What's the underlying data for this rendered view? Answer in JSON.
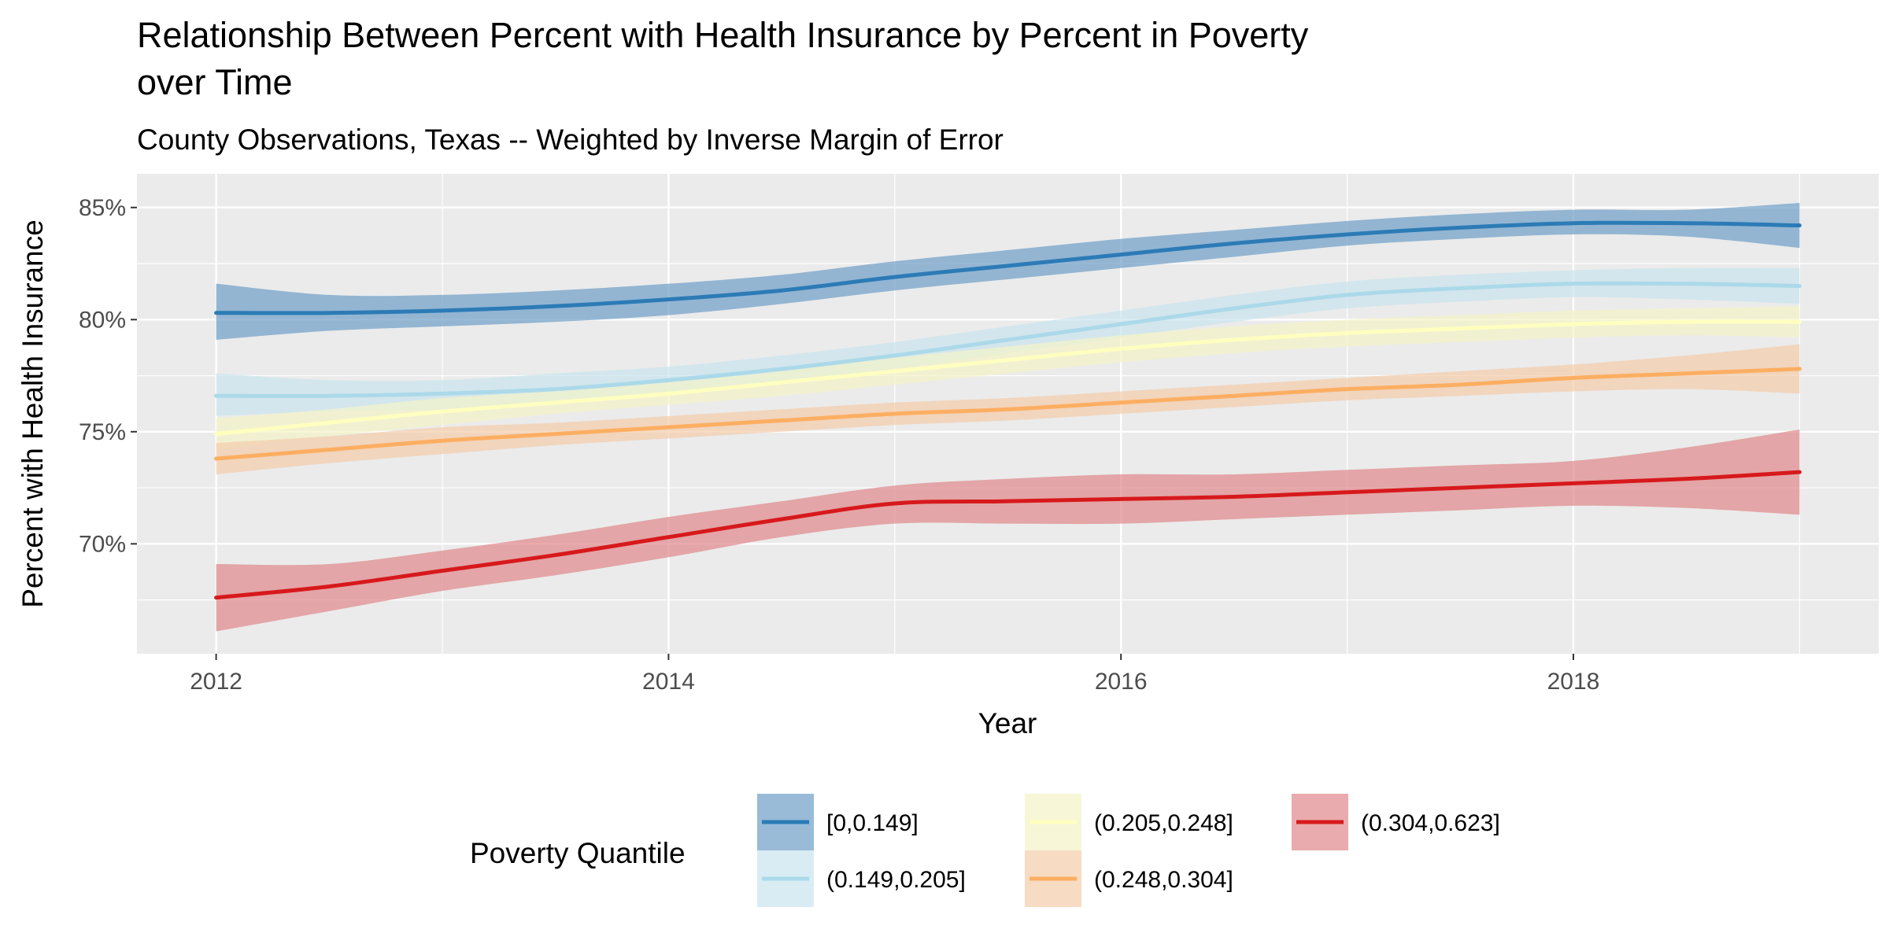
{
  "chart_data": {
    "type": "line",
    "title": "Relationship Between Percent with Health Insurance by Percent in Poverty",
    "title_line2": "over Time",
    "subtitle": "County Observations, Texas -- Weighted by Inverse Margin of Error",
    "xlabel": "Year",
    "ylabel": "Percent with Health Insurance",
    "xlim": [
      2011.65,
      2019.35
    ],
    "ylim": [
      65.1,
      86.5
    ],
    "x_ticks": [
      2012,
      2014,
      2016,
      2018
    ],
    "x_tick_labels": [
      "2012",
      "2014",
      "2016",
      "2018"
    ],
    "y_ticks": [
      70,
      75,
      80,
      85
    ],
    "y_tick_labels": [
      "70%",
      "75%",
      "80%",
      "85%"
    ],
    "grid": true,
    "legend": {
      "title": "Poverty Quantile",
      "position": "bottom"
    },
    "x": [
      2012,
      2012.5,
      2013,
      2013.5,
      2014,
      2014.5,
      2015,
      2015.5,
      2016,
      2016.5,
      2017,
      2017.5,
      2018,
      2018.5,
      2019
    ],
    "series": [
      {
        "name": "[0,0.149]",
        "color": "#2c7bb6",
        "band_color": "#6e9ec8",
        "y": [
          80.3,
          80.3,
          80.4,
          80.6,
          80.9,
          81.3,
          81.9,
          82.4,
          82.9,
          83.4,
          83.8,
          84.1,
          84.3,
          84.3,
          84.2
        ],
        "lower": [
          79.1,
          79.5,
          79.7,
          79.9,
          80.2,
          80.7,
          81.3,
          81.8,
          82.3,
          82.8,
          83.3,
          83.6,
          83.8,
          83.7,
          83.2
        ],
        "upper": [
          81.6,
          81.1,
          81.1,
          81.3,
          81.6,
          82.0,
          82.6,
          83.1,
          83.6,
          84.0,
          84.4,
          84.7,
          84.9,
          84.9,
          85.2
        ]
      },
      {
        "name": "(0.149,0.205]",
        "color": "#abd9e9",
        "band_color": "#c9e4ee",
        "y": [
          76.6,
          76.6,
          76.7,
          76.9,
          77.3,
          77.8,
          78.4,
          79.1,
          79.8,
          80.5,
          81.1,
          81.4,
          81.6,
          81.6,
          81.5
        ],
        "lower": [
          75.7,
          75.9,
          76.0,
          76.2,
          76.7,
          77.2,
          77.8,
          78.5,
          79.2,
          79.9,
          80.5,
          80.8,
          81.0,
          80.9,
          80.7
        ],
        "upper": [
          77.6,
          77.3,
          77.3,
          77.6,
          77.9,
          78.4,
          79.0,
          79.7,
          80.4,
          81.1,
          81.7,
          82.0,
          82.2,
          82.3,
          82.3
        ]
      },
      {
        "name": "(0.205,0.248]",
        "color": "#ffffbf",
        "band_color": "#f4f4c8",
        "y": [
          74.9,
          75.4,
          75.9,
          76.3,
          76.7,
          77.2,
          77.7,
          78.2,
          78.7,
          79.1,
          79.4,
          79.6,
          79.8,
          79.9,
          79.9
        ],
        "lower": [
          74.2,
          74.8,
          75.3,
          75.8,
          76.2,
          76.6,
          77.1,
          77.6,
          78.1,
          78.5,
          78.8,
          79.0,
          79.2,
          79.3,
          79.2
        ],
        "upper": [
          75.6,
          76.0,
          76.5,
          76.8,
          77.2,
          77.7,
          78.3,
          78.8,
          79.3,
          79.7,
          80.0,
          80.2,
          80.4,
          80.5,
          80.6
        ]
      },
      {
        "name": "(0.248,0.304]",
        "color": "#fdae61",
        "band_color": "#f3ccaa",
        "y": [
          73.8,
          74.2,
          74.6,
          74.9,
          75.2,
          75.5,
          75.8,
          76.0,
          76.3,
          76.6,
          76.9,
          77.1,
          77.4,
          77.6,
          77.8
        ],
        "lower": [
          73.1,
          73.6,
          74.0,
          74.4,
          74.7,
          75.0,
          75.3,
          75.5,
          75.8,
          76.1,
          76.4,
          76.6,
          76.8,
          76.9,
          76.7
        ],
        "upper": [
          74.5,
          74.8,
          75.2,
          75.4,
          75.7,
          76.0,
          76.3,
          76.5,
          76.8,
          77.1,
          77.4,
          77.7,
          78.0,
          78.4,
          78.9
        ]
      },
      {
        "name": "(0.304,0.623]",
        "color": "#d7191c",
        "band_color": "#e0878a",
        "y": [
          67.6,
          68.1,
          68.8,
          69.5,
          70.3,
          71.1,
          71.8,
          71.9,
          72.0,
          72.1,
          72.3,
          72.5,
          72.7,
          72.9,
          73.2
        ],
        "lower": [
          66.1,
          67.0,
          67.9,
          68.6,
          69.4,
          70.3,
          70.9,
          70.9,
          70.9,
          71.1,
          71.3,
          71.5,
          71.7,
          71.6,
          71.3
        ],
        "upper": [
          69.1,
          69.1,
          69.7,
          70.4,
          71.2,
          71.9,
          72.6,
          72.9,
          73.1,
          73.1,
          73.3,
          73.5,
          73.7,
          74.3,
          75.1
        ]
      }
    ]
  }
}
